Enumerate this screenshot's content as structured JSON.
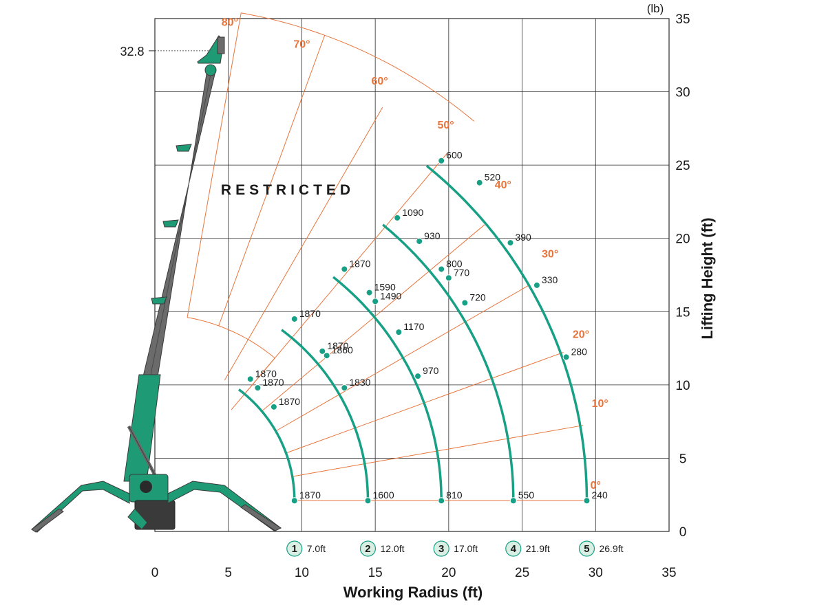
{
  "chart_data": {
    "type": "scatter",
    "xlabel": "Working Radius (ft)",
    "ylabel": "Lifting Height (ft)",
    "unit_label": "(lb)",
    "restricted_label": "RESTRICTED",
    "max_height_label": "32.8",
    "max_height": 32.8,
    "xlim": [
      0,
      35
    ],
    "ylim": [
      0,
      35
    ],
    "x_ticks": [
      "0",
      "5",
      "10",
      "15",
      "20",
      "25",
      "30",
      "35"
    ],
    "y_ticks": [
      "0",
      "5",
      "10",
      "15",
      "20",
      "25",
      "30",
      "35"
    ],
    "angles": [
      {
        "deg": 0,
        "label": "0°"
      },
      {
        "deg": 10,
        "label": "10°"
      },
      {
        "deg": 20,
        "label": "20°"
      },
      {
        "deg": 30,
        "label": "30°"
      },
      {
        "deg": 40,
        "label": "40°"
      },
      {
        "deg": 50,
        "label": "50°"
      },
      {
        "deg": 60,
        "label": "60°"
      },
      {
        "deg": 70,
        "label": "70°"
      },
      {
        "deg": 80,
        "label": "80°"
      }
    ],
    "series": [
      {
        "id": "1",
        "length_label": "7.0ft",
        "radius": 9.5,
        "points": [
          {
            "x": 9.5,
            "y": 2.1,
            "load": "1870"
          },
          {
            "x": 8.1,
            "y": 8.5,
            "load": "1870"
          },
          {
            "x": 7.0,
            "y": 9.8,
            "load": "1870"
          },
          {
            "x": 6.5,
            "y": 10.4,
            "load": "1870"
          }
        ]
      },
      {
        "id": "2",
        "length_label": "12.0ft",
        "radius": 14.5,
        "points": [
          {
            "x": 14.5,
            "y": 2.1,
            "load": "1600"
          },
          {
            "x": 12.9,
            "y": 9.8,
            "load": "1830"
          },
          {
            "x": 11.7,
            "y": 12.0,
            "load": "1860"
          },
          {
            "x": 11.4,
            "y": 12.3,
            "load": "1870"
          },
          {
            "x": 9.5,
            "y": 14.5,
            "load": "1870"
          }
        ]
      },
      {
        "id": "3",
        "length_label": "17.0ft",
        "radius": 19.5,
        "points": [
          {
            "x": 19.5,
            "y": 2.1,
            "load": "810"
          },
          {
            "x": 17.9,
            "y": 10.6,
            "load": "970"
          },
          {
            "x": 16.6,
            "y": 13.6,
            "load": "1170"
          },
          {
            "x": 15.0,
            "y": 15.7,
            "load": "1490"
          },
          {
            "x": 14.6,
            "y": 16.3,
            "load": "1590"
          },
          {
            "x": 12.9,
            "y": 17.9,
            "load": "1870"
          }
        ]
      },
      {
        "id": "4",
        "length_label": "21.9ft",
        "radius": 24.4,
        "points": [
          {
            "x": 24.4,
            "y": 2.1,
            "load": "550"
          },
          {
            "x": 21.1,
            "y": 15.6,
            "load": "720"
          },
          {
            "x": 20.0,
            "y": 17.3,
            "load": "770"
          },
          {
            "x": 19.5,
            "y": 17.9,
            "load": "800"
          },
          {
            "x": 18.0,
            "y": 19.8,
            "load": "930"
          },
          {
            "x": 16.5,
            "y": 21.4,
            "load": "1090"
          }
        ]
      },
      {
        "id": "5",
        "length_label": "26.9ft",
        "radius": 29.4,
        "points": [
          {
            "x": 29.4,
            "y": 2.1,
            "load": "240"
          },
          {
            "x": 28.0,
            "y": 11.9,
            "load": "280"
          },
          {
            "x": 26.0,
            "y": 16.8,
            "load": "330"
          },
          {
            "x": 24.2,
            "y": 19.7,
            "load": "390"
          },
          {
            "x": 22.1,
            "y": 23.8,
            "load": "520"
          },
          {
            "x": 19.5,
            "y": 25.3,
            "load": "600"
          }
        ]
      }
    ]
  },
  "colors": {
    "curve": "#17a085",
    "angle": "#e8743b",
    "angle_text": "#e8743b",
    "grid": "#2b2b2b",
    "badge_fill": "#d9efe4",
    "crane_body": "#1e9a74",
    "crane_boom": "#6b6b6b",
    "crane_dark": "#3a3a3a"
  }
}
